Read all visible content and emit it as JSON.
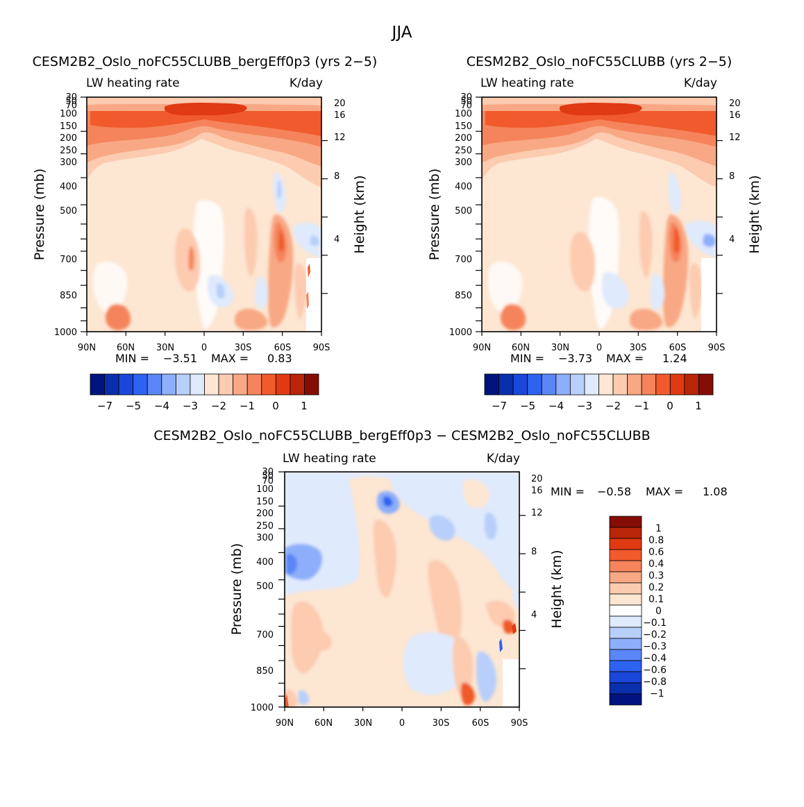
{
  "figure": {
    "title": "JJA"
  },
  "colors": {
    "abs": [
      "#00137f",
      "#0a2fad",
      "#1a47d9",
      "#2e62f0",
      "#5a86f7",
      "#8daefa",
      "#b8cffb",
      "#dfeafd",
      "#fde6d2",
      "#fccbb0",
      "#f8a884",
      "#f5845c",
      "#f05a2c",
      "#df3a12",
      "#b82508",
      "#840d06"
    ],
    "diff": [
      "#00137f",
      "#0a2fad",
      "#1a47d9",
      "#2e62f0",
      "#5a86f7",
      "#8daefa",
      "#b8cffb",
      "#dfeafd",
      "#ffffff",
      "#fde6d2",
      "#fccbb0",
      "#f8a884",
      "#f5845c",
      "#f05a2c",
      "#df3a12",
      "#b82508",
      "#840d06"
    ]
  },
  "chart_data": [
    {
      "type": "heatmap",
      "id": "top-left",
      "title": "CESM2B2_Oslo_noFC55CLUBB_bergEff0p3 (yrs 2−5)",
      "left_label": "LW heating rate",
      "right_label": "K/day",
      "ylabel": "Pressure (mb)",
      "ylabel_right": "Height (km)",
      "x_ticks": [
        "90N",
        "60N",
        "30N",
        "0",
        "30S",
        "60S",
        "90S"
      ],
      "y_ticks": [
        "30",
        "50",
        "70",
        "100",
        "150",
        "200",
        "250",
        "300",
        "400",
        "500",
        "700",
        "850",
        "1000"
      ],
      "height_ticks": [
        "20",
        "16",
        "12",
        "8",
        "4"
      ],
      "min_label": "MIN =",
      "min_value": "−3.51",
      "max_label": "MAX =",
      "max_value": "0.83",
      "colorbar_labels": [
        "−7",
        "−5",
        "−4",
        "−3",
        "−2",
        "−1",
        "0",
        "1"
      ]
    },
    {
      "type": "heatmap",
      "id": "top-right",
      "title": "CESM2B2_Oslo_noFC55CLUBB (yrs 2−5)",
      "left_label": "LW heating rate",
      "right_label": "K/day",
      "ylabel": "Pressure (mb)",
      "ylabel_right": "Height (km)",
      "x_ticks": [
        "90N",
        "60N",
        "30N",
        "0",
        "30S",
        "60S",
        "90S"
      ],
      "y_ticks": [
        "30",
        "50",
        "70",
        "100",
        "150",
        "200",
        "250",
        "300",
        "400",
        "500",
        "700",
        "850",
        "1000"
      ],
      "height_ticks": [
        "20",
        "16",
        "12",
        "8",
        "4"
      ],
      "min_label": "MIN =",
      "min_value": "−3.73",
      "max_label": "MAX =",
      "max_value": "1.24",
      "colorbar_labels": [
        "−7",
        "−5",
        "−4",
        "−3",
        "−2",
        "−1",
        "0",
        "1"
      ]
    },
    {
      "type": "heatmap",
      "id": "bottom",
      "title": "CESM2B2_Oslo_noFC55CLUBB_bergEff0p3 − CESM2B2_Oslo_noFC55CLUBB",
      "left_label": "LW heating rate",
      "right_label": "K/day",
      "ylabel": "Pressure (mb)",
      "ylabel_right": "Height (km)",
      "x_ticks": [
        "90N",
        "60N",
        "30N",
        "0",
        "30S",
        "60S",
        "90S"
      ],
      "y_ticks": [
        "30",
        "50",
        "70",
        "100",
        "150",
        "200",
        "250",
        "300",
        "400",
        "500",
        "700",
        "850",
        "1000"
      ],
      "height_ticks": [
        "20",
        "16",
        "12",
        "8",
        "4"
      ],
      "min_label": "MIN =",
      "min_value": "−0.58",
      "max_label": "MAX =",
      "max_value": "1.08",
      "colorbar_labels": [
        "1",
        "0.8",
        "0.6",
        "0.4",
        "0.3",
        "0.2",
        "0.1",
        "0",
        "−0.1",
        "−0.2",
        "−0.3",
        "−0.4",
        "−0.6",
        "−0.8",
        "−1"
      ]
    }
  ]
}
